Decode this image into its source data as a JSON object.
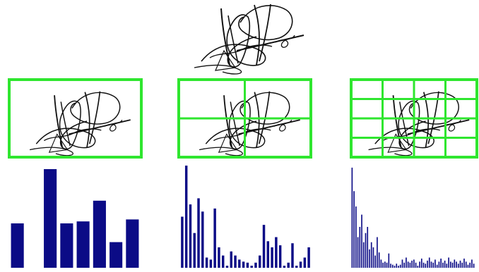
{
  "colors": {
    "grid": "#2fe62f",
    "bar": "#0b0b86",
    "ink": "#111111",
    "background": "#ffffff"
  },
  "panels": [
    {
      "grid_cols": 1,
      "grid_rows": 1
    },
    {
      "grid_cols": 2,
      "grid_rows": 2
    },
    {
      "grid_cols": 4,
      "grid_rows": 4
    }
  ],
  "histograms": [
    {
      "bins": 8,
      "values": [
        0.45,
        0,
        1.0,
        0.45,
        0.47,
        0.68,
        0.26,
        0.49
      ]
    },
    {
      "bins": 32,
      "values": [
        0.5,
        1.0,
        0.62,
        0.34,
        0.68,
        0.55,
        0.1,
        0.08,
        0.58,
        0.2,
        0.12,
        0.02,
        0.16,
        0.12,
        0.08,
        0.06,
        0.05,
        0.02,
        0.05,
        0.12,
        0.42,
        0.26,
        0.2,
        0.3,
        0.22,
        0.02,
        0.05,
        0.24,
        0.02,
        0.06,
        0.1,
        0.2
      ]
    },
    {
      "bins": 64,
      "values": [
        0.98,
        0.75,
        0.6,
        0.3,
        0.4,
        0.52,
        0.25,
        0.34,
        0.4,
        0.18,
        0.25,
        0.2,
        0.12,
        0.3,
        0.15,
        0.08,
        0.05,
        0.06,
        0.05,
        0.14,
        0.04,
        0.03,
        0.02,
        0.04,
        0.02,
        0.03,
        0.08,
        0.05,
        0.1,
        0.06,
        0.05,
        0.07,
        0.08,
        0.05,
        0.02,
        0.06,
        0.09,
        0.05,
        0.04,
        0.07,
        0.1,
        0.06,
        0.05,
        0.08,
        0.03,
        0.06,
        0.09,
        0.05,
        0.07,
        0.04,
        0.1,
        0.06,
        0.05,
        0.08,
        0.06,
        0.04,
        0.07,
        0.05,
        0.09,
        0.06,
        0.03,
        0.05,
        0.08,
        0.04
      ]
    }
  ]
}
